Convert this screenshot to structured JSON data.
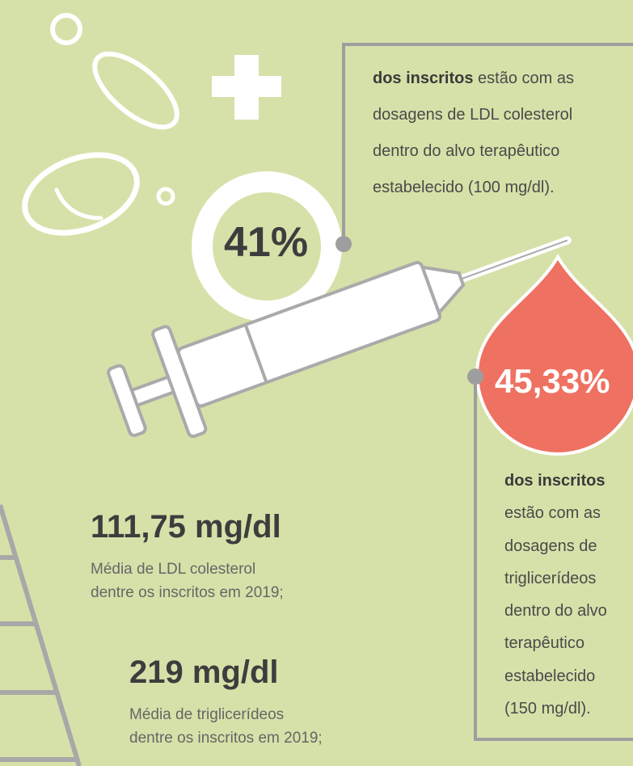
{
  "ldl_target": {
    "percent": "41%",
    "lead": "dos inscritos",
    "first_line_rest": " estão com as",
    "lines": [
      "dosagens de LDL colesterol",
      "dentro do alvo terapêutico",
      "estabelecido (100 mg/dl)."
    ]
  },
  "trig_target": {
    "percent": "45,33%",
    "lead": "dos inscritos",
    "lines": [
      "estão com as",
      "dosagens de",
      "triglicerídeos",
      "dentro do alvo",
      "terapêutico",
      "estabelecido",
      "(150 mg/dl)."
    ]
  },
  "ldl_mean": {
    "value": "111,75 mg/dl",
    "lines": [
      "Média de LDL colesterol",
      "dentre os inscritos em 2019;"
    ]
  },
  "trig_mean": {
    "value": "219 mg/dl",
    "lines": [
      "Média de triglicerídeos",
      "dentre os inscritos em 2019;"
    ]
  }
}
